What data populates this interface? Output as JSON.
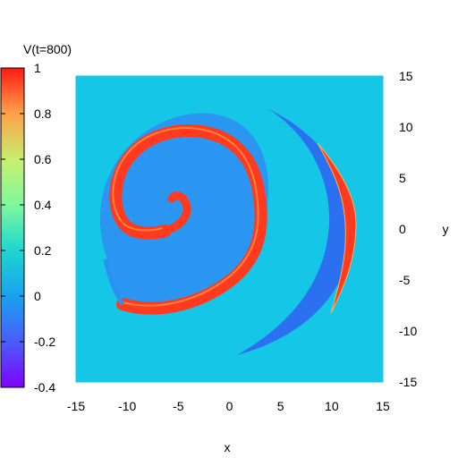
{
  "chart_data": {
    "type": "heatmap",
    "title": "",
    "colorbar_label": "V(t=800)",
    "xlabel": "x",
    "ylabel": "y",
    "xlim": [
      -15,
      15
    ],
    "ylim": [
      -15,
      15
    ],
    "x_ticks": [
      "-15",
      "-10",
      "-5",
      "0",
      "5",
      "10",
      "15"
    ],
    "y_ticks": [
      "15",
      "10",
      "5",
      "0",
      "-5",
      "-10",
      "-15"
    ],
    "colorbar_range": [
      -0.4,
      1
    ],
    "colorbar_ticks": [
      "1",
      "0.8",
      "0.6",
      "0.4",
      "0.2",
      "0",
      "-0.2",
      "-0.4"
    ],
    "colormap": "rainbow",
    "background_value": 0,
    "field_colors": {
      "background": "#16c6e6",
      "refractory": "#2c90f2",
      "excited": "#ff3a1e",
      "excited_edge": "#ffb050",
      "wave_tail": "#2a70f0"
    },
    "features": {
      "spiral_tip": [
        -5,
        2.5
      ],
      "spiral_outer_extent": [
        -12,
        4,
        -8,
        12
      ],
      "circular_front_center": [
        0,
        0
      ],
      "circular_front_radius": 12.5
    }
  }
}
